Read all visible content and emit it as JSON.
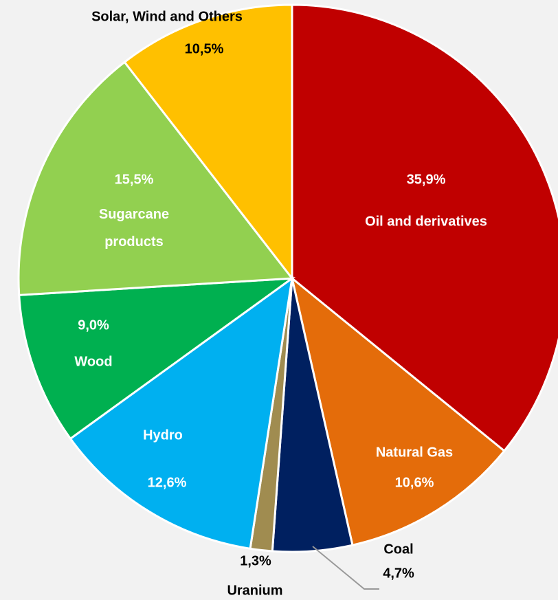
{
  "chart_data": {
    "type": "pie",
    "categories": [
      "Oil and derivatives",
      "Natural Gas",
      "Coal",
      "Uranium",
      "Hydro",
      "Wood",
      "Sugarcane products",
      "Solar, Wind and Others"
    ],
    "values": [
      35.9,
      10.6,
      4.7,
      1.3,
      12.6,
      9.0,
      15.5,
      10.5
    ],
    "value_labels": [
      "35,9%",
      "10,6%",
      "4,7%",
      "1,3%",
      "12,6%",
      "9,0%",
      "15,5%",
      "10,5%"
    ],
    "colors": [
      "#c00000",
      "#e46c0a",
      "#002060",
      "#a08c50",
      "#00b0f0",
      "#00b050",
      "#92d050",
      "#ffc000"
    ]
  }
}
